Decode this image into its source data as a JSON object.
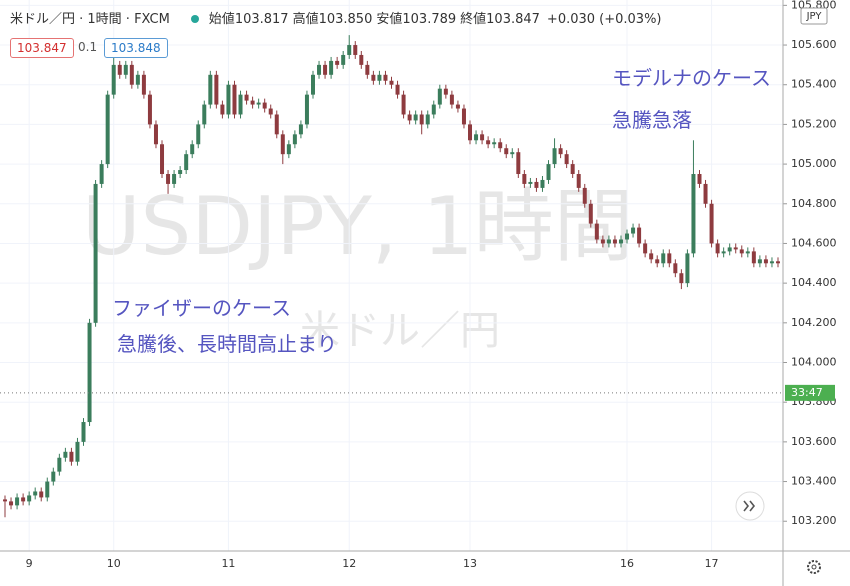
{
  "header": {
    "symbol": "米ドル／円 · 1時間 · FXCM",
    "ohlc": [
      {
        "label": "始値",
        "value": "103.817"
      },
      {
        "label": "高値",
        "value": "103.850"
      },
      {
        "label": "安値",
        "value": "103.789"
      },
      {
        "label": "終値",
        "value": "103.847"
      }
    ],
    "change": "+0.030 (+0.03%)",
    "sell": "103.847",
    "spread": "0.1",
    "buy": "103.848"
  },
  "chart_data": {
    "type": "candlestick",
    "watermark": "USDJPY, 1時間",
    "watermark_sub": "米ドル／円",
    "currency": "JPY",
    "countdown": "33:47",
    "last_price": 103.847,
    "annotations": [
      "ファイザーのケース",
      "急騰後、長時間高止まり",
      "モデルナのケース",
      "急騰急落"
    ],
    "up_color": "#3b7d5c",
    "down_color": "#8e3b3f",
    "grid": true,
    "ylim": [
      103.05,
      105.827
    ],
    "yticks": [
      {
        "value": 103.2,
        "label": "103.200"
      },
      {
        "value": 103.4,
        "label": "103.400"
      },
      {
        "value": 103.6,
        "label": "103.600"
      },
      {
        "value": 103.8,
        "label": "103.800"
      },
      {
        "value": 104,
        "label": "104.000"
      },
      {
        "value": 104.2,
        "label": "104.200"
      },
      {
        "value": 104.4,
        "label": "104.400"
      },
      {
        "value": 104.6,
        "label": "104.600"
      },
      {
        "value": 104.8,
        "label": "104.800"
      },
      {
        "value": 105,
        "label": "105.000"
      },
      {
        "value": 105.2,
        "label": "105.200"
      },
      {
        "value": 105.4,
        "label": "105.400"
      },
      {
        "value": 105.6,
        "label": "105.600"
      },
      {
        "value": 105.8,
        "label": "105.800"
      }
    ],
    "categories": [
      null,
      null,
      null,
      null,
      "9",
      null,
      null,
      null,
      null,
      null,
      null,
      null,
      null,
      null,
      null,
      null,
      null,
      null,
      "10",
      null,
      null,
      null,
      null,
      null,
      null,
      null,
      null,
      null,
      null,
      null,
      null,
      null,
      null,
      null,
      null,
      null,
      null,
      "11",
      null,
      null,
      null,
      null,
      null,
      null,
      null,
      null,
      null,
      null,
      null,
      null,
      null,
      null,
      null,
      null,
      null,
      null,
      null,
      "12",
      null,
      null,
      null,
      null,
      null,
      null,
      null,
      null,
      null,
      null,
      null,
      null,
      null,
      null,
      null,
      null,
      null,
      null,
      null,
      "13",
      null,
      null,
      null,
      null,
      null,
      null,
      null,
      null,
      null,
      null,
      null,
      null,
      null,
      null,
      null,
      null,
      null,
      null,
      null,
      null,
      null,
      null,
      null,
      null,
      null,
      "16",
      null,
      null,
      null,
      null,
      null,
      null,
      null,
      null,
      null,
      null,
      null,
      null,
      null,
      "17",
      null,
      null,
      null,
      null,
      null,
      null,
      null,
      null,
      null,
      null,
      null
    ],
    "open": [
      103.31,
      103.3,
      103.28,
      103.32,
      103.3,
      103.33,
      103.35,
      103.32,
      103.4,
      103.45,
      103.52,
      103.55,
      103.5,
      103.6,
      103.7,
      104.2,
      104.9,
      105.0,
      105.35,
      105.5,
      105.45,
      105.5,
      105.4,
      105.45,
      105.35,
      105.2,
      105.1,
      104.95,
      104.9,
      104.95,
      104.97,
      105.05,
      105.1,
      105.2,
      105.3,
      105.45,
      105.3,
      105.25,
      105.4,
      105.25,
      105.35,
      105.32,
      105.3,
      105.31,
      105.28,
      105.25,
      105.15,
      105.05,
      105.1,
      105.15,
      105.2,
      105.35,
      105.45,
      105.5,
      105.45,
      105.52,
      105.5,
      105.55,
      105.6,
      105.55,
      105.5,
      105.45,
      105.42,
      105.45,
      105.42,
      105.4,
      105.35,
      105.25,
      105.22,
      105.25,
      105.2,
      105.25,
      105.3,
      105.38,
      105.35,
      105.3,
      105.28,
      105.2,
      105.12,
      105.15,
      105.12,
      105.1,
      105.11,
      105.08,
      105.05,
      105.06,
      104.95,
      104.9,
      104.91,
      104.88,
      104.92,
      105.0,
      105.08,
      105.05,
      105.0,
      104.95,
      104.88,
      104.8,
      104.7,
      104.62,
      104.6,
      104.62,
      104.6,
      104.62,
      104.65,
      104.68,
      104.6,
      104.55,
      104.52,
      104.5,
      104.55,
      104.5,
      104.45,
      104.4,
      104.55,
      104.95,
      104.9,
      104.8,
      104.6,
      104.55,
      104.56,
      104.58,
      104.57,
      104.55,
      104.56,
      104.5,
      104.52,
      104.5,
      104.51
    ],
    "high": [
      103.33,
      103.32,
      103.34,
      103.34,
      103.35,
      103.37,
      103.37,
      103.42,
      103.47,
      103.54,
      103.57,
      103.57,
      103.62,
      103.72,
      104.22,
      104.92,
      105.02,
      105.37,
      105.55,
      105.52,
      105.52,
      105.52,
      105.47,
      105.47,
      105.37,
      105.22,
      105.12,
      104.97,
      104.97,
      104.99,
      105.07,
      105.12,
      105.22,
      105.32,
      105.47,
      105.47,
      105.32,
      105.42,
      105.42,
      105.37,
      105.37,
      105.34,
      105.33,
      105.33,
      105.3,
      105.27,
      105.17,
      105.12,
      105.17,
      105.22,
      105.37,
      105.47,
      105.52,
      105.52,
      105.54,
      105.54,
      105.57,
      105.65,
      105.62,
      105.57,
      105.52,
      105.47,
      105.47,
      105.47,
      105.44,
      105.42,
      105.37,
      105.27,
      105.27,
      105.27,
      105.27,
      105.32,
      105.4,
      105.4,
      105.37,
      105.32,
      105.3,
      105.22,
      105.17,
      105.17,
      105.14,
      105.13,
      105.13,
      105.1,
      105.08,
      105.08,
      104.97,
      104.93,
      104.93,
      104.94,
      105.02,
      105.13,
      105.1,
      105.07,
      105.02,
      104.97,
      104.9,
      104.82,
      104.72,
      104.64,
      104.64,
      104.64,
      104.64,
      104.67,
      104.7,
      104.7,
      104.62,
      104.57,
      104.54,
      104.57,
      104.57,
      104.52,
      104.47,
      104.57,
      105.12,
      104.97,
      104.92,
      104.82,
      104.62,
      104.58,
      104.6,
      104.6,
      104.59,
      104.58,
      104.58,
      104.54,
      104.54,
      104.53,
      104.53
    ],
    "low": [
      103.22,
      103.26,
      103.26,
      103.28,
      103.28,
      103.31,
      103.3,
      103.3,
      103.38,
      103.43,
      103.5,
      103.48,
      103.48,
      103.58,
      103.68,
      104.18,
      104.88,
      104.98,
      105.33,
      105.43,
      105.43,
      105.38,
      105.38,
      105.33,
      105.18,
      105.08,
      104.93,
      104.85,
      104.88,
      104.93,
      104.95,
      105.03,
      105.08,
      105.18,
      105.28,
      105.28,
      105.23,
      105.23,
      105.23,
      105.23,
      105.3,
      105.28,
      105.28,
      105.26,
      105.23,
      105.13,
      105.0,
      105.03,
      105.08,
      105.13,
      105.18,
      105.33,
      105.43,
      105.43,
      105.43,
      105.48,
      105.48,
      105.53,
      105.53,
      105.48,
      105.43,
      105.4,
      105.4,
      105.4,
      105.38,
      105.33,
      105.23,
      105.2,
      105.2,
      105.15,
      105.18,
      105.23,
      105.28,
      105.33,
      105.28,
      105.26,
      105.18,
      105.1,
      105.1,
      105.1,
      105.08,
      105.08,
      105.06,
      105.03,
      105.03,
      104.93,
      104.88,
      104.88,
      104.86,
      104.86,
      104.9,
      104.98,
      105.03,
      104.98,
      104.93,
      104.86,
      104.78,
      104.68,
      104.6,
      104.58,
      104.58,
      104.58,
      104.58,
      104.6,
      104.63,
      104.58,
      104.53,
      104.5,
      104.48,
      104.48,
      104.48,
      104.43,
      104.37,
      104.38,
      104.53,
      104.88,
      104.78,
      104.58,
      104.53,
      104.53,
      104.54,
      104.55,
      104.53,
      104.53,
      104.48,
      104.48,
      104.48,
      104.48,
      104.48
    ],
    "close": [
      103.3,
      103.28,
      103.32,
      103.3,
      103.33,
      103.35,
      103.32,
      103.4,
      103.45,
      103.52,
      103.55,
      103.5,
      103.6,
      103.7,
      104.2,
      104.9,
      105.0,
      105.35,
      105.5,
      105.45,
      105.5,
      105.4,
      105.45,
      105.35,
      105.2,
      105.1,
      104.95,
      104.9,
      104.95,
      104.97,
      105.05,
      105.1,
      105.2,
      105.3,
      105.45,
      105.3,
      105.25,
      105.4,
      105.25,
      105.35,
      105.32,
      105.3,
      105.31,
      105.28,
      105.25,
      105.15,
      105.05,
      105.1,
      105.15,
      105.2,
      105.35,
      105.45,
      105.5,
      105.45,
      105.52,
      105.5,
      105.55,
      105.6,
      105.55,
      105.5,
      105.45,
      105.42,
      105.45,
      105.42,
      105.4,
      105.35,
      105.25,
      105.22,
      105.25,
      105.2,
      105.25,
      105.3,
      105.38,
      105.35,
      105.3,
      105.28,
      105.2,
      105.12,
      105.15,
      105.12,
      105.1,
      105.11,
      105.08,
      105.05,
      105.06,
      104.95,
      104.9,
      104.91,
      104.88,
      104.92,
      105.0,
      105.08,
      105.05,
      105.0,
      104.95,
      104.88,
      104.8,
      104.7,
      104.62,
      104.6,
      104.62,
      104.6,
      104.62,
      104.65,
      104.68,
      104.6,
      104.55,
      104.52,
      104.5,
      104.55,
      104.5,
      104.45,
      104.4,
      104.55,
      104.95,
      104.9,
      104.8,
      104.6,
      104.55,
      104.56,
      104.58,
      104.57,
      104.55,
      104.56,
      104.5,
      104.52,
      104.5,
      104.51,
      104.5
    ]
  }
}
